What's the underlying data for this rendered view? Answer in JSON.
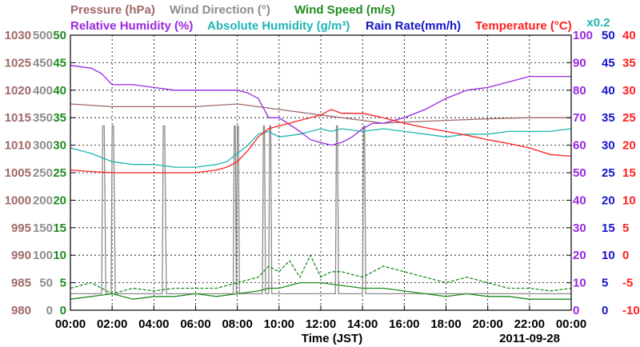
{
  "chart_data": {
    "type": "line",
    "date": "2011-09-28",
    "xlabel": "Time (JST)",
    "x_ticks": [
      "00:00",
      "02:00",
      "04:00",
      "06:00",
      "08:00",
      "10:00",
      "12:00",
      "14:00",
      "16:00",
      "18:00",
      "20:00",
      "22:00",
      "00:00"
    ],
    "x_unit": "hour",
    "xlim": [
      0,
      24
    ],
    "grid": true,
    "legend": [
      {
        "name": "Pressure (hPa)",
        "color": "#a06868",
        "row": 1
      },
      {
        "name": "Wind Direction (°)",
        "color": "#8c8c8c",
        "row": 1
      },
      {
        "name": "Wind Speed (m/s)",
        "color": "#1e8c1e",
        "row": 1
      },
      {
        "name": "Relative Humidity (%)",
        "color": "#9a28e0",
        "row": 2
      },
      {
        "name": "Absolute Humidity (g/m³)",
        "color": "#20b4b4",
        "row": 2
      },
      {
        "name": "Rain Rate(mm/h)",
        "color": "#1414c8",
        "row": 2
      },
      {
        "name": "Temperature (°C)",
        "color": "#ff2020",
        "row": 2
      }
    ],
    "axes": {
      "pressure": {
        "color": "#a06868",
        "ylim": [
          980,
          1030
        ],
        "ticks": [
          "980",
          "985",
          "990",
          "995",
          "1000",
          "1005",
          "1010",
          "1015",
          "1020",
          "1025",
          "1030"
        ]
      },
      "wind_direction": {
        "color": "#8c8c8c",
        "ylim": [
          0,
          500
        ],
        "ticks": [
          "0",
          "50",
          "100",
          "150",
          "200",
          "250",
          "300",
          "350",
          "400",
          "450",
          "500"
        ]
      },
      "wind_speed": {
        "color": "#1e8c1e",
        "ylim": [
          0,
          50
        ],
        "ticks": [
          "0",
          "5",
          "10",
          "15",
          "20",
          "25",
          "30",
          "35",
          "40",
          "45",
          "50"
        ]
      },
      "relative_humidity": {
        "color": "#9a28e0",
        "ylim": [
          0,
          100
        ],
        "ticks": [
          "0",
          "10",
          "20",
          "30",
          "40",
          "50",
          "60",
          "70",
          "80",
          "90",
          "100"
        ]
      },
      "rain_rate": {
        "color": "#1414c8",
        "ylim": [
          0,
          50
        ],
        "ticks": [
          "0",
          "5",
          "10",
          "15",
          "20",
          "25",
          "30",
          "35",
          "40",
          "45",
          "50"
        ]
      },
      "temperature": {
        "color": "#ff2020",
        "ylim": [
          -10,
          40
        ],
        "ticks": [
          "-10",
          "-5",
          "0",
          "5",
          "10",
          "15",
          "20",
          "25",
          "30",
          "35",
          "40"
        ]
      },
      "absolute_humidity_scale_note": "x0.2"
    },
    "series": [
      {
        "name": "Temperature (°C)",
        "axis": "temperature",
        "x": [
          0,
          1,
          2,
          3,
          4,
          5,
          6,
          7,
          7.5,
          8,
          8.5,
          9,
          9.5,
          10,
          11,
          12,
          12.5,
          13,
          14,
          15,
          16,
          17,
          18,
          19,
          20,
          21,
          22,
          23,
          24
        ],
        "y": [
          15.5,
          15.2,
          15.0,
          15.0,
          15.0,
          15.0,
          15.0,
          15.5,
          16.0,
          17.0,
          19.0,
          21.5,
          23.0,
          23.5,
          24.5,
          25.5,
          26.5,
          25.8,
          25.8,
          25.0,
          24.0,
          23.2,
          22.5,
          21.8,
          21.0,
          20.3,
          19.5,
          18.3,
          18.0
        ]
      },
      {
        "name": "Absolute Humidity (g/m³)",
        "axis": "rain_rate",
        "x": [
          0,
          1,
          2,
          3,
          4,
          5,
          6,
          7,
          7.5,
          8,
          8.5,
          9,
          9.5,
          10,
          11,
          12,
          12.5,
          13,
          14,
          15,
          16,
          17,
          18,
          19,
          20,
          21,
          22,
          23,
          24
        ],
        "y": [
          29.5,
          28.5,
          27.0,
          26.5,
          26.5,
          26.0,
          26.0,
          26.5,
          27.0,
          28.5,
          30.0,
          32.0,
          32.5,
          31.5,
          32.0,
          33.0,
          32.5,
          33.0,
          32.5,
          33.0,
          32.5,
          32.0,
          31.5,
          32.0,
          32.0,
          32.5,
          32.5,
          32.5,
          33.0
        ]
      },
      {
        "name": "Relative Humidity (%)",
        "axis": "relative_humidity",
        "x": [
          0,
          1,
          1.5,
          2,
          3,
          4,
          5,
          6,
          7,
          8,
          8.5,
          9,
          9.5,
          10,
          11,
          11.5,
          12,
          12.5,
          13,
          13.5,
          14,
          14.5,
          15,
          15.5,
          16,
          17,
          18,
          19,
          20,
          21,
          22,
          23,
          24
        ],
        "y": [
          89,
          88,
          86,
          82,
          82,
          81,
          80,
          80,
          80,
          80,
          79,
          77,
          70,
          70,
          65,
          62,
          61,
          60,
          61,
          63,
          66,
          68,
          68,
          69,
          70,
          73,
          77,
          80,
          81,
          83,
          85,
          85,
          85
        ]
      },
      {
        "name": "Pressure (hPa)",
        "axis": "pressure",
        "x": [
          0,
          2,
          4,
          6,
          8,
          10,
          12,
          14,
          15,
          16,
          18,
          20,
          22,
          24
        ],
        "y": [
          1017.5,
          1017.0,
          1017.0,
          1017.0,
          1017.5,
          1016.5,
          1015.5,
          1014.5,
          1014.0,
          1014.2,
          1014.5,
          1014.8,
          1015.0,
          1015.0
        ]
      },
      {
        "name": "Wind Speed (m/s)",
        "axis": "wind_speed",
        "x": [
          0,
          1,
          2,
          3,
          4,
          5,
          6,
          7,
          8,
          9,
          9.5,
          10,
          11,
          12,
          13,
          14,
          15,
          16,
          17,
          18,
          19,
          20,
          21,
          22,
          23,
          24
        ],
        "y": [
          2,
          2.5,
          3,
          2,
          2.5,
          2.5,
          3,
          2.5,
          3,
          3.5,
          4,
          4,
          5,
          5,
          4.5,
          4,
          4,
          3.5,
          3,
          2.5,
          3,
          2.5,
          2.5,
          2,
          2,
          2
        ]
      },
      {
        "name": "Wind Speed (m/s) gust",
        "axis": "wind_speed",
        "x": [
          0,
          1,
          2,
          3,
          4,
          5,
          6,
          7,
          8,
          9,
          9.5,
          10,
          10.5,
          11,
          11.5,
          12,
          12.5,
          13,
          14,
          15,
          16,
          17,
          18,
          19,
          20,
          21,
          22,
          23,
          24
        ],
        "y": [
          4,
          5,
          3,
          4,
          3.5,
          4,
          4,
          4,
          5,
          6,
          8,
          7,
          9,
          6,
          10,
          6,
          7,
          7,
          6,
          8,
          7,
          6,
          5,
          6,
          5,
          4,
          4,
          3.5,
          4
        ]
      },
      {
        "name": "Wind Direction (°)",
        "axis": "wind_direction",
        "x": [
          0,
          1.5,
          1.55,
          1.62,
          1.7,
          1.95,
          2.0,
          2.07,
          2.15,
          4.4,
          4.45,
          4.52,
          4.6,
          7.8,
          7.85,
          7.9,
          7.95,
          8.0,
          8.05,
          8.1,
          8.15,
          9.2,
          9.25,
          9.3,
          9.35,
          9.5,
          9.55,
          9.6,
          9.65,
          9.8,
          12.7,
          12.75,
          12.8,
          12.85,
          14.0,
          14.05,
          14.1,
          14.15,
          24
        ],
        "y": [
          30,
          30,
          335,
          335,
          30,
          30,
          335,
          335,
          30,
          30,
          335,
          335,
          30,
          30,
          335,
          335,
          30,
          335,
          335,
          30,
          30,
          30,
          335,
          335,
          30,
          30,
          335,
          335,
          30,
          30,
          30,
          335,
          335,
          30,
          30,
          335,
          335,
          30,
          30
        ]
      }
    ]
  }
}
